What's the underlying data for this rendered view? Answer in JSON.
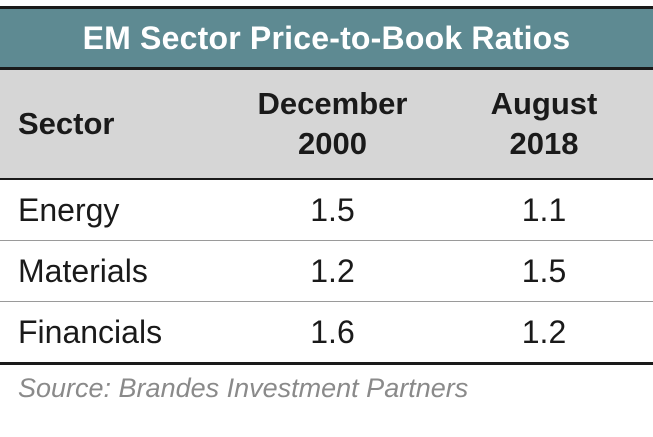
{
  "table": {
    "title": "EM Sector Price-to-Book Ratios",
    "headers": {
      "sector": "Sector",
      "dec_line1": "December",
      "dec_line2": "2000",
      "aug_line1": "August",
      "aug_line2": "2018"
    },
    "rows": [
      {
        "sector": "Energy",
        "dec2000": "1.5",
        "aug2018": "1.1"
      },
      {
        "sector": "Materials",
        "dec2000": "1.2",
        "aug2018": "1.5"
      },
      {
        "sector": "Financials",
        "dec2000": "1.6",
        "aug2018": "1.2"
      }
    ]
  },
  "source": "Source: Brandes Investment Partners",
  "colors": {
    "title_bg": "#5e8a92",
    "header_bg": "#d6d6d6",
    "source_text": "#8a8a8a"
  }
}
